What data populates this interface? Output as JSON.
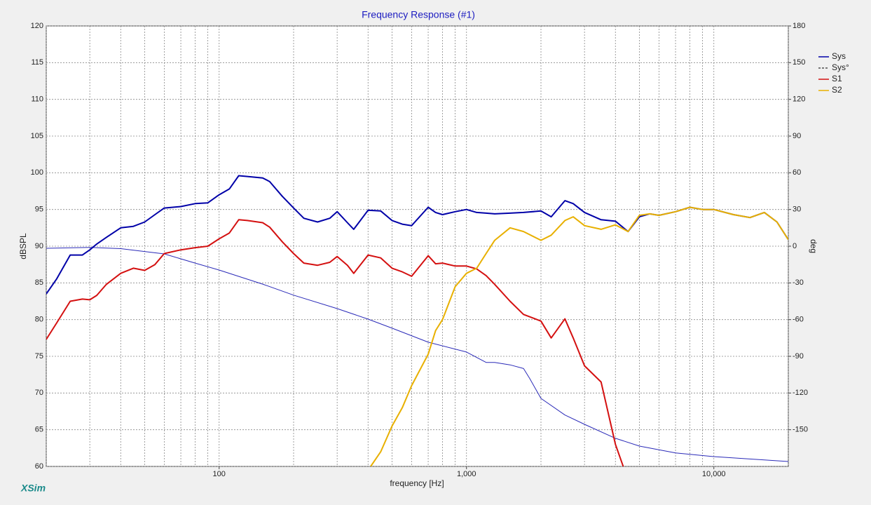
{
  "chart_data": {
    "type": "line",
    "title": "Frequency Response (#1)",
    "xlabel": "frequency [Hz]",
    "ylabel": "dBSPL",
    "y2label": "deg",
    "brand": "XSim",
    "xscale": "log",
    "xlim": [
      20,
      20000
    ],
    "xticks": [
      100,
      {
        "value": 1000,
        "label": "1,000"
      },
      {
        "value": 10000,
        "label": "10,000"
      }
    ],
    "xminor": [
      20,
      30,
      40,
      50,
      60,
      70,
      80,
      90,
      100,
      200,
      300,
      400,
      500,
      600,
      700,
      800,
      900,
      1000,
      2000,
      3000,
      4000,
      5000,
      6000,
      7000,
      8000,
      9000,
      10000,
      20000
    ],
    "ylim": [
      60,
      120
    ],
    "yticks": [
      60,
      65,
      70,
      75,
      80,
      85,
      90,
      95,
      100,
      105,
      110,
      115,
      120
    ],
    "y2lim": [
      -180,
      180
    ],
    "y2ticks": [
      -150,
      -120,
      -90,
      -60,
      -30,
      0,
      30,
      60,
      90,
      120,
      150,
      180
    ],
    "grid": true,
    "legend": "upper right",
    "series": [
      {
        "name": "Sys",
        "color": "#0000a8",
        "width": 2,
        "x": [
          20,
          22,
          25,
          28,
          30,
          32,
          35,
          40,
          45,
          50,
          55,
          60,
          70,
          80,
          90,
          100,
          110,
          120,
          130,
          150,
          160,
          180,
          200,
          220,
          250,
          280,
          300,
          330,
          350,
          400,
          450,
          500,
          550,
          600,
          700,
          750,
          800,
          900,
          1000,
          1100,
          1200,
          1300,
          1500,
          1700,
          2000,
          2200,
          2500,
          2700,
          3000,
          3500,
          4000,
          4500,
          5000,
          5500,
          6000,
          7000,
          8000,
          9000,
          10000,
          12000,
          14000,
          16000,
          18000,
          20000
        ],
        "values": [
          83.5,
          85.5,
          88.8,
          88.8,
          89.5,
          90.3,
          91.2,
          92.5,
          92.7,
          93.3,
          94.3,
          95.2,
          95.4,
          95.8,
          95.9,
          97.0,
          97.8,
          99.6,
          99.5,
          99.3,
          98.8,
          96.8,
          95.2,
          93.8,
          93.3,
          93.8,
          94.7,
          93.2,
          92.3,
          94.9,
          94.8,
          93.5,
          93.0,
          92.8,
          95.3,
          94.6,
          94.3,
          94.7,
          95.0,
          94.6,
          94.5,
          94.4,
          94.5,
          94.6,
          94.8,
          94.0,
          96.2,
          95.8,
          94.6,
          93.6,
          93.4,
          92.0,
          94.0,
          94.4,
          94.2,
          94.7,
          95.3,
          95.0,
          95.0,
          94.3,
          93.9,
          94.6,
          93.3,
          90.9
        ]
      },
      {
        "name": "Sys°",
        "color": "#2a2ab8",
        "width": 1,
        "axis": "y2",
        "legend_dash": true,
        "x": [
          20,
          30,
          40,
          60,
          80,
          100,
          150,
          200,
          300,
          400,
          500,
          700,
          1000,
          1200,
          1300,
          1500,
          1700,
          1800,
          2000,
          2500,
          3000,
          4000,
          5000,
          7000,
          10000,
          20000
        ],
        "values": [
          -1.7,
          -1.0,
          -2.0,
          -6.3,
          -13.8,
          -19.5,
          -31,
          -40,
          -51,
          -59.6,
          -67,
          -78.5,
          -86.5,
          -95,
          -95,
          -97,
          -100,
          -108,
          -124.4,
          -138,
          -145.6,
          -157,
          -163.4,
          -169,
          -172,
          -176
        ]
      },
      {
        "name": "S1",
        "color": "#d41010",
        "width": 2,
        "x": [
          20,
          22,
          25,
          28,
          30,
          32,
          35,
          40,
          45,
          50,
          55,
          60,
          70,
          80,
          90,
          100,
          110,
          120,
          130,
          150,
          160,
          180,
          200,
          220,
          250,
          280,
          300,
          330,
          350,
          400,
          450,
          500,
          550,
          600,
          700,
          750,
          800,
          900,
          1000,
          1100,
          1200,
          1300,
          1500,
          1700,
          2000,
          2200,
          2500,
          2700,
          3000,
          3500,
          4000,
          4300
        ],
        "values": [
          77.3,
          79.5,
          82.5,
          82.8,
          82.7,
          83.3,
          84.8,
          86.3,
          87.0,
          86.7,
          87.5,
          89.0,
          89.5,
          89.8,
          90.0,
          91.0,
          91.8,
          93.6,
          93.5,
          93.2,
          92.6,
          90.6,
          89.0,
          87.7,
          87.4,
          87.8,
          88.6,
          87.4,
          86.3,
          88.8,
          88.4,
          87.0,
          86.5,
          85.9,
          88.7,
          87.6,
          87.7,
          87.3,
          87.3,
          86.9,
          86.0,
          84.8,
          82.5,
          80.7,
          79.8,
          77.5,
          80.1,
          77.5,
          73.7,
          71.5,
          63.0,
          60.0
        ]
      },
      {
        "name": "S2",
        "color": "#e8b000",
        "width": 2,
        "x": [
          410,
          450,
          500,
          550,
          600,
          700,
          750,
          800,
          900,
          1000,
          1100,
          1200,
          1300,
          1500,
          1700,
          2000,
          2200,
          2500,
          2700,
          3000,
          3500,
          4000,
          4500,
          5000,
          5500,
          6000,
          7000,
          8000,
          9000,
          10000,
          12000,
          14000,
          16000,
          18000,
          20000
        ],
        "values": [
          60.0,
          62.0,
          65.5,
          68.0,
          71.0,
          75.3,
          78.5,
          80.0,
          84.5,
          86.3,
          87.0,
          89.0,
          90.8,
          92.5,
          92.0,
          90.8,
          91.5,
          93.5,
          94.0,
          92.8,
          92.3,
          92.9,
          92.0,
          94.2,
          94.4,
          94.2,
          94.7,
          95.3,
          95.0,
          95.0,
          94.3,
          93.9,
          94.6,
          93.3,
          90.9
        ]
      }
    ]
  }
}
